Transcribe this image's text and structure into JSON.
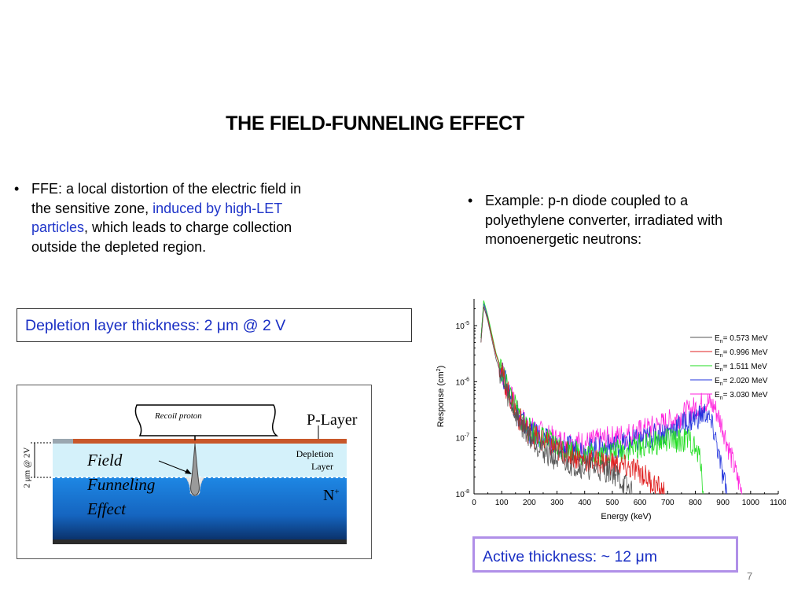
{
  "slide": {
    "title": "THE FIELD-FUNNELING EFFECT",
    "page_number": "7"
  },
  "left_bullet": {
    "marker": "•",
    "text_part1": "FFE: a local distortion of the electric field in the sensitive zone, ",
    "text_highlight": "induced by high-LET particles",
    "text_part2": ", which leads to charge collection outside the depleted region."
  },
  "right_bullet": {
    "marker": "•",
    "text": "Example: p-n diode coupled to a polyethylene converter, irradiated with monoenergetic neutrons:"
  },
  "depletion_callout": {
    "text": "Depletion layer thickness:  2 μm @ 2 V"
  },
  "active_callout": {
    "text": "Active thickness: ~ 12 μm"
  },
  "diagram": {
    "recoil_label": "Recoil proton",
    "p_layer_label": "P-Layer",
    "depletion_label_1": "Depletion",
    "depletion_label_2": "Layer",
    "n_label": "N",
    "n_superscript": "+",
    "funnel_label_1": "Field",
    "funnel_label_2": "Funneling",
    "funnel_label_3": "Effect",
    "thickness_label": "2 μm @ 2V",
    "colors": {
      "p_layer": "#c8572a",
      "depletion": "#d4f1fa",
      "n_region": "#1a78d8",
      "n_dark": "#0d3f8a"
    }
  },
  "chart_data": {
    "type": "line",
    "xlabel": "Energy (keV)",
    "ylabel_main": "Response (cm",
    "ylabel_sup": "2",
    "ylabel_end": ")",
    "x_ticks": [
      "0",
      "100",
      "200",
      "300",
      "400",
      "500",
      "600",
      "700",
      "800",
      "900",
      "1000",
      "1100"
    ],
    "xlim": [
      0,
      1100
    ],
    "y_scale": "log",
    "ylim": [
      1e-08,
      3e-05
    ],
    "y_ticks": [
      {
        "base": "10",
        "exp": "-8",
        "value": 1e-08
      },
      {
        "base": "10",
        "exp": "-7",
        "value": 1e-07
      },
      {
        "base": "10",
        "exp": "-6",
        "value": 1e-06
      },
      {
        "base": "10",
        "exp": "-5",
        "value": 1e-05
      }
    ],
    "legend_position": "top-right",
    "series": [
      {
        "name_pre": "E",
        "name_sub": "n",
        "name_post": "= 0.573 MeV",
        "color": "#555555",
        "x": [
          25,
          35,
          50,
          80,
          120,
          160,
          200,
          250,
          300,
          400,
          500,
          573
        ],
        "y": [
          5e-06,
          2.2e-05,
          1.2e-05,
          2.5e-06,
          6e-07,
          2e-07,
          1.1e-07,
          6e-08,
          4e-08,
          3e-08,
          2.5e-08,
          1e-08
        ]
      },
      {
        "name_pre": "E",
        "name_sub": "n",
        "name_post": "= 0.996 MeV",
        "color": "#e02020",
        "x": [
          25,
          35,
          50,
          80,
          120,
          160,
          200,
          300,
          400,
          500,
          600,
          690
        ],
        "y": [
          5e-06,
          2.2e-05,
          1.3e-05,
          3e-06,
          7e-07,
          2.3e-07,
          1.2e-07,
          6e-08,
          4e-08,
          3.5e-08,
          2.5e-08,
          1e-08
        ]
      },
      {
        "name_pre": "E",
        "name_sub": "n",
        "name_post": "= 1.511 MeV",
        "color": "#22dd22",
        "x": [
          25,
          35,
          50,
          80,
          120,
          160,
          200,
          300,
          400,
          500,
          600,
          700,
          780,
          820,
          830
        ],
        "y": [
          6e-06,
          2.8e-05,
          1.5e-05,
          3.2e-06,
          8e-07,
          2.6e-07,
          1.4e-07,
          7e-08,
          5e-08,
          5.5e-08,
          7e-08,
          9e-08,
          9e-08,
          4e-08,
          1e-08
        ]
      },
      {
        "name_pre": "E",
        "name_sub": "n",
        "name_post": "= 2.020 MeV",
        "color": "#2233dd",
        "x": [
          25,
          35,
          50,
          80,
          120,
          160,
          200,
          300,
          400,
          500,
          600,
          700,
          780,
          840,
          870,
          900,
          915
        ],
        "y": [
          6e-06,
          2.5e-05,
          1.4e-05,
          3e-06,
          8e-07,
          2.5e-07,
          1.3e-07,
          7e-08,
          6e-08,
          7e-08,
          9e-08,
          1.3e-07,
          2e-07,
          2.8e-07,
          1.2e-07,
          2e-08,
          1e-08
        ]
      },
      {
        "name_pre": "E",
        "name_sub": "n",
        "name_post": "= 3.030 MeV",
        "color": "#ff22dd",
        "x": [
          25,
          35,
          50,
          80,
          120,
          160,
          200,
          300,
          400,
          500,
          600,
          700,
          780,
          840,
          870,
          900,
          940,
          970
        ],
        "y": [
          6e-06,
          2.5e-05,
          1.4e-05,
          3e-06,
          8e-07,
          2.6e-07,
          1.5e-07,
          9e-08,
          8e-08,
          1e-07,
          1.3e-07,
          1.9e-07,
          3e-07,
          4.5e-07,
          3.5e-07,
          1.5e-07,
          3e-08,
          1e-08
        ]
      }
    ]
  }
}
